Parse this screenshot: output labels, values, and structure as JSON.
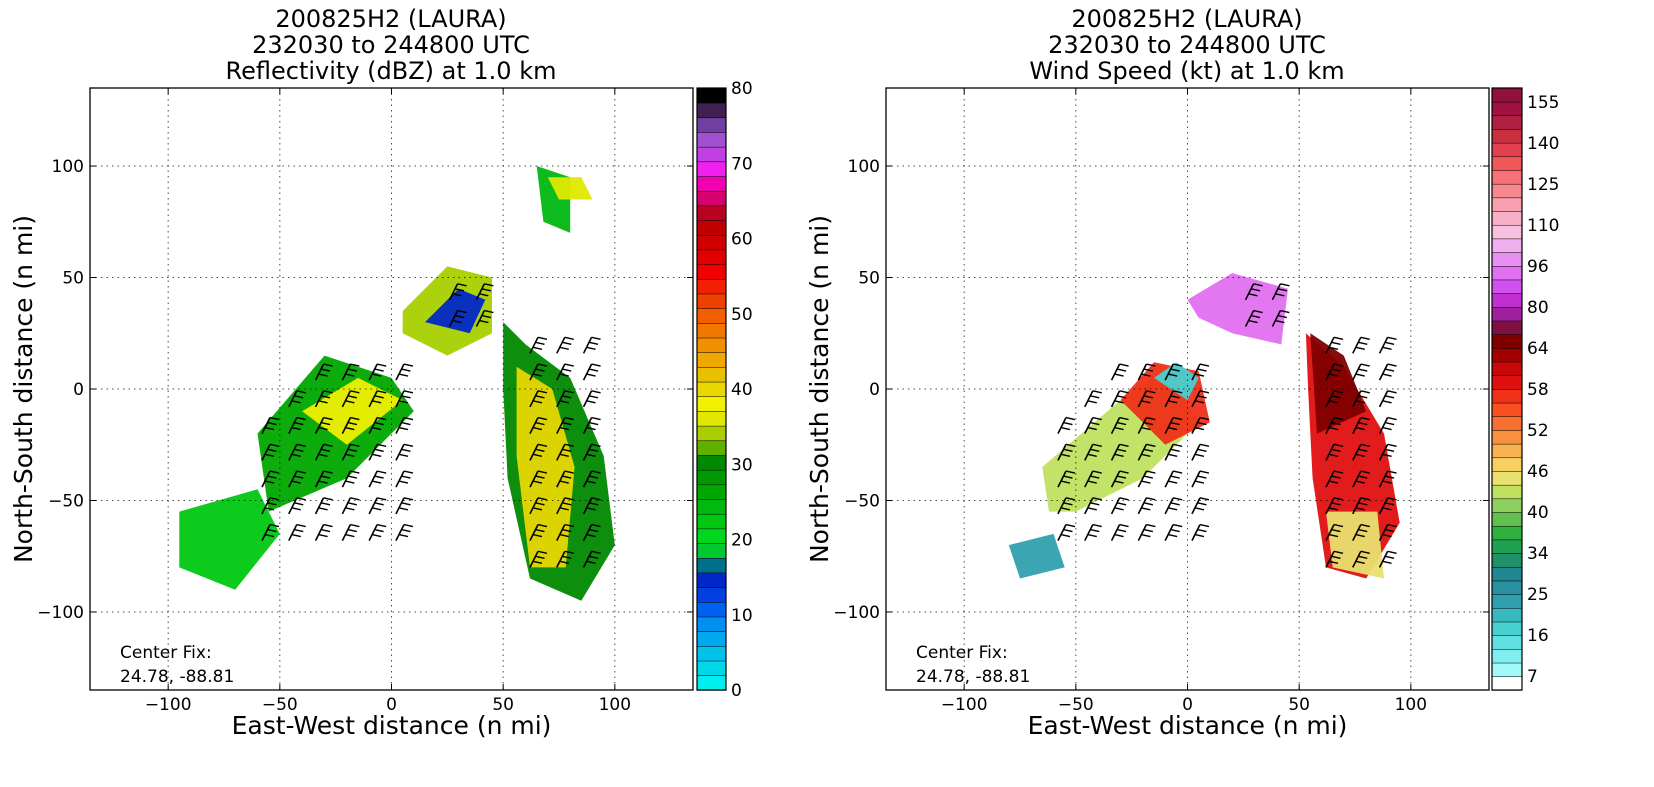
{
  "chart_data": [
    {
      "type": "heatmap",
      "title": [
        "200825H2 (LAURA)",
        "232030 to 244800 UTC",
        "Reflectivity (dBZ) at 1.0 km"
      ],
      "xlabel": "East-West distance (n mi)",
      "ylabel": "North-South distance (n mi)",
      "xlim": [
        -135,
        135
      ],
      "ylim": [
        -135,
        135
      ],
      "x_ticks": [
        "−100",
        "−50",
        "0",
        "50",
        "100"
      ],
      "x_tick_values": [
        -100,
        -50,
        0,
        50,
        100
      ],
      "y_ticks": [
        "100",
        "50",
        "0",
        "−50",
        "−100"
      ],
      "y_tick_values": [
        100,
        50,
        0,
        -50,
        -100
      ],
      "grid": true,
      "annotation": [
        "Center Fix:",
        "24.78, -88.81"
      ],
      "colorbar": {
        "min": 0,
        "max": 80,
        "tick_labels": [
          "80",
          "70",
          "60",
          "50",
          "40",
          "30",
          "20",
          "10",
          "0"
        ],
        "tick_values": [
          80,
          70,
          60,
          50,
          40,
          30,
          20,
          10,
          0
        ],
        "colors": [
          "#00eeee",
          "#00d8e8",
          "#00c2ea",
          "#00a8ee",
          "#0090f0",
          "#0060f0",
          "#0040e0",
          "#0028c8",
          "#00708a",
          "#00c830",
          "#00d820",
          "#00c810",
          "#00b810",
          "#00a800",
          "#009800",
          "#008800",
          "#60b000",
          "#a8d000",
          "#e0e800",
          "#f0f000",
          "#e8d800",
          "#e8c000",
          "#f0a800",
          "#f09000",
          "#f07800",
          "#f06000",
          "#f04000",
          "#f02000",
          "#f00000",
          "#e00000",
          "#d00000",
          "#c00000",
          "#b80020",
          "#d80070",
          "#f000b0",
          "#f020f0",
          "#c040e0",
          "#a050d0",
          "#7040a0",
          "#402050",
          "#000000"
        ]
      },
      "barb_color": "#000000"
    },
    {
      "type": "heatmap",
      "title": [
        "200825H2 (LAURA)",
        "232030 to 244800 UTC",
        "Wind Speed (kt) at 1.0 km"
      ],
      "xlabel": "East-West distance (n mi)",
      "ylabel": "North-South distance (n mi)",
      "xlim": [
        -135,
        135
      ],
      "ylim": [
        -135,
        135
      ],
      "x_ticks": [
        "−100",
        "−50",
        "0",
        "50",
        "100"
      ],
      "x_tick_values": [
        -100,
        -50,
        0,
        50,
        100
      ],
      "y_ticks": [
        "100",
        "50",
        "0",
        "−50",
        "−100"
      ],
      "y_tick_values": [
        100,
        50,
        0,
        -50,
        -100
      ],
      "grid": true,
      "annotation": [
        "Center Fix:",
        "24.78, -88.81"
      ],
      "colorbar": {
        "tick_labels": [
          "155",
          "140",
          "125",
          "110",
          "96",
          "80",
          "64",
          "58",
          "52",
          "46",
          "40",
          "34",
          "25",
          "16",
          "7"
        ],
        "colors": [
          "#ffffff",
          "#a0f8f8",
          "#80eeee",
          "#60e0e0",
          "#48d0d0",
          "#38b8c0",
          "#30a0b0",
          "#2890a0",
          "#208890",
          "#209068",
          "#20a050",
          "#30b040",
          "#60c050",
          "#90d060",
          "#c0e060",
          "#e8e070",
          "#f8d060",
          "#f8b050",
          "#f89040",
          "#f87030",
          "#f85020",
          "#f03018",
          "#e01010",
          "#c80808",
          "#a00000",
          "#800000",
          "#801040",
          "#a020a0",
          "#c030d0",
          "#d050f0",
          "#e070f0",
          "#e890f0",
          "#f0b0f0",
          "#f8c0e0",
          "#f8b0c8",
          "#f8a0b0",
          "#f88890",
          "#f87078",
          "#f05858",
          "#e04050",
          "#c83040",
          "#b02040",
          "#a01040",
          "#901040"
        ]
      },
      "barb_color": "#000000"
    }
  ]
}
